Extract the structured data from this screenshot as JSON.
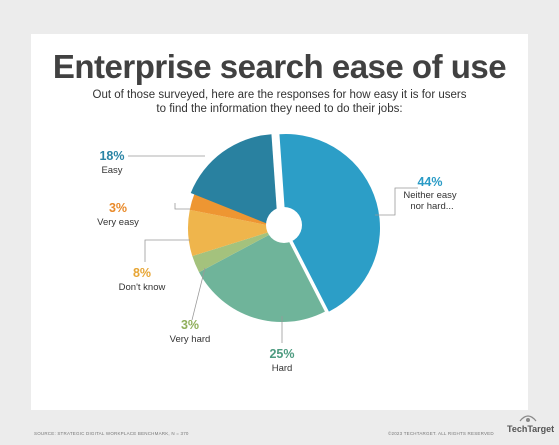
{
  "page": {
    "title": "Enterprise search ease of use",
    "subtitle": "Out of those surveyed, here are the responses for how easy it is for users to find the information they need to do their jobs:",
    "source": "SOURCE: STRATEGIC DIGITAL WORKPLACE BENCHMARK, N = 370",
    "copyright": "©2023 TECHTARGET. ALL RIGHTS RESERVED",
    "brand": "TechTarget"
  },
  "chart_data": {
    "type": "pie",
    "title": "Enterprise search ease of use",
    "slices": [
      {
        "label": "Neither easy nor hard...",
        "value": 44,
        "text": "44%",
        "color": "#2c9ec7"
      },
      {
        "label": "Hard",
        "value": 25,
        "text": "25%",
        "color": "#6fb49a"
      },
      {
        "label": "Very hard",
        "value": 3,
        "text": "3%",
        "color": "#a4c27d"
      },
      {
        "label": "Don't know",
        "value": 8,
        "text": "8%",
        "color": "#efb54c"
      },
      {
        "label": "Very easy",
        "value": 3,
        "text": "3%",
        "color": "#ee9632"
      },
      {
        "label": "Easy",
        "value": 18,
        "text": "18%",
        "color": "#2981a0"
      }
    ],
    "label_colors": {
      "Neither easy nor hard...": "#2a9bc6",
      "Hard": "#4d9b80",
      "Very hard": "#8fae5a",
      "Don't know": "#e7a534",
      "Very easy": "#e98a2a",
      "Easy": "#2a84a5"
    },
    "donut_hole": true
  }
}
